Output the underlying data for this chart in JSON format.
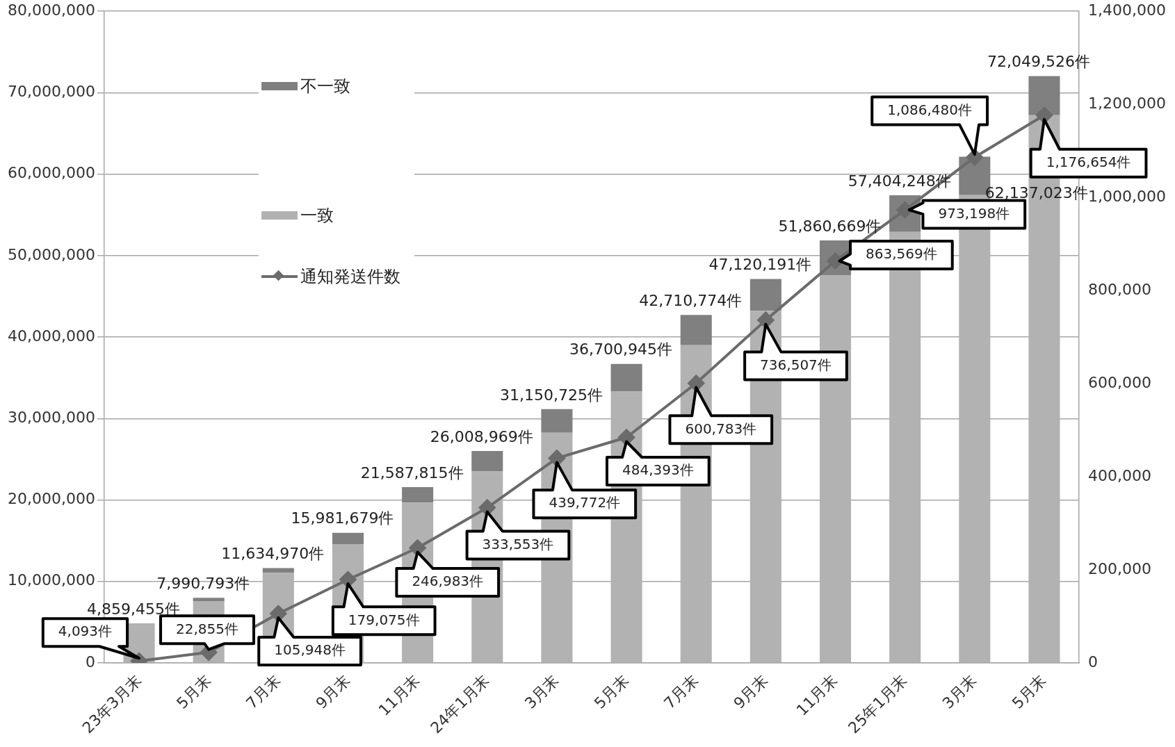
{
  "chart_data": {
    "type": "bar",
    "stacked": true,
    "categories": [
      "23年3月末",
      "5月末",
      "7月末",
      "9月末",
      "11月末",
      "24年1月末",
      "3月末",
      "5月末",
      "7月末",
      "9月末",
      "11月末",
      "25年1月末",
      "3月末",
      "5月末"
    ],
    "series": [
      {
        "name": "一致",
        "color": "#b2b2b2",
        "values": [
          4859455,
          7590793,
          11034970,
          14581679,
          19687815,
          23508969,
          28250725,
          33300945,
          39010774,
          43220191,
          47560669,
          52904248,
          57437023,
          67249526
        ]
      },
      {
        "name": "不一致",
        "color": "#808080",
        "values": [
          0,
          400000.0,
          600000.0,
          1400000.0,
          1900000.0,
          2500000.0,
          2900000.0,
          3400000.0,
          3700000.0,
          3900000.0,
          4300000.0,
          4500000.0,
          4700000.0,
          4800000.0
        ]
      },
      {
        "name": "通知発送件数",
        "type": "line",
        "axis": "y2",
        "color": "#6b6b6b",
        "marker": "diamond",
        "values": [
          4093,
          22855,
          105948,
          179075,
          246983,
          333553,
          439772,
          484393,
          600783,
          736507,
          863569,
          973198,
          1086480,
          1176654
        ],
        "value_labels": [
          "4,093件",
          "22,855件",
          "105,948件",
          "179,075件",
          "246,983件",
          "333,553件",
          "439,772件",
          "484,393件",
          "600,783件",
          "736,507件",
          "863,569件",
          "973,198件",
          "1,086,480件",
          "1,176,654件"
        ]
      }
    ],
    "totals": [
      "4,859,455件",
      "7,990,793件",
      "11,634,970件",
      "15,981,679件",
      "21,587,815件",
      "26,008,969件",
      "31,150,725件",
      "36,700,945件",
      "42,710,774件",
      "47,120,191件",
      "51,860,669件",
      "57,404,248件",
      "62,137,023件",
      "72,049,526件"
    ],
    "ylim": [
      0,
      80000000
    ],
    "yticks": [
      0,
      {
        "value": 10000000,
        "label": "10,000,000"
      },
      {
        "value": 20000000,
        "label": "20,000,000"
      },
      {
        "value": 30000000,
        "label": "30,000,000"
      },
      {
        "value": 40000000,
        "label": "40,000,000"
      },
      {
        "value": 50000000,
        "label": "50,000,000"
      },
      {
        "value": 60000000,
        "label": "60,000,000"
      },
      {
        "value": 70000000,
        "label": "70,000,000"
      },
      {
        "value": 80000000,
        "label": "80,000,000"
      }
    ],
    "y2lim": [
      0,
      1400000
    ],
    "y2ticks": [
      0,
      {
        "value": 200000,
        "label": "200,000"
      },
      {
        "value": 400000,
        "label": "400,000"
      },
      {
        "value": 600000,
        "label": "600,000"
      },
      {
        "value": 800000,
        "label": "800,000"
      },
      {
        "value": 1000000,
        "label": "1,000,000"
      },
      {
        "value": 1200000,
        "label": "1,200,000"
      },
      {
        "value": 1400000,
        "label": "1,400,000"
      }
    ],
    "grid": "y",
    "legend": "top left"
  }
}
